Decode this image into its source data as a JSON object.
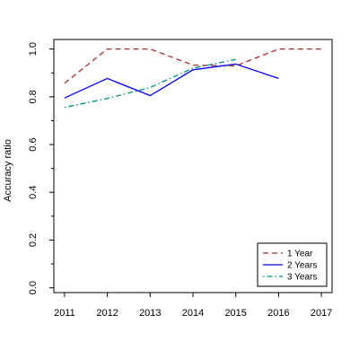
{
  "chart_data": {
    "type": "line",
    "x": [
      2011,
      2012,
      2013,
      2014,
      2015,
      2016,
      2017
    ],
    "xlim": [
      2010.75,
      2017.25
    ],
    "ylim": [
      -0.02,
      1.04
    ],
    "xticks": [
      "2011",
      "2012",
      "2013",
      "2014",
      "2015",
      "2016",
      "2017"
    ],
    "yticks": [
      "0.0",
      "0.2",
      "0.4",
      "0.6",
      "0.8",
      "1.0"
    ],
    "ytick_values": [
      0.0,
      0.2,
      0.4,
      0.6,
      0.8,
      1.0
    ],
    "yminor_ticks": [
      0.1,
      0.3,
      0.5,
      0.7,
      0.9
    ],
    "xlabel": "",
    "ylabel": "Accuracy ratio",
    "grid": false,
    "legend_position": "bottom-right",
    "series": [
      {
        "name": "1 Year",
        "color": "#a52a2a",
        "dash": "dashed",
        "x": [
          2011,
          2012,
          2013,
          2014,
          2015,
          2016,
          2017
        ],
        "values": [
          0.857,
          1.0,
          1.0,
          0.933,
          0.929,
          1.0,
          1.0
        ]
      },
      {
        "name": "2 Years",
        "color": "#0000ee",
        "dash": "solid",
        "x": [
          2011,
          2012,
          2013,
          2014,
          2015,
          2016
        ],
        "values": [
          0.795,
          0.877,
          0.805,
          0.913,
          0.937,
          0.877
        ]
      },
      {
        "name": "3 Years",
        "color": "#008b8b",
        "dash": "dotdash",
        "x": [
          2011,
          2012,
          2013,
          2014,
          2015
        ],
        "values": [
          0.756,
          0.793,
          0.839,
          0.92,
          0.956
        ]
      }
    ]
  }
}
